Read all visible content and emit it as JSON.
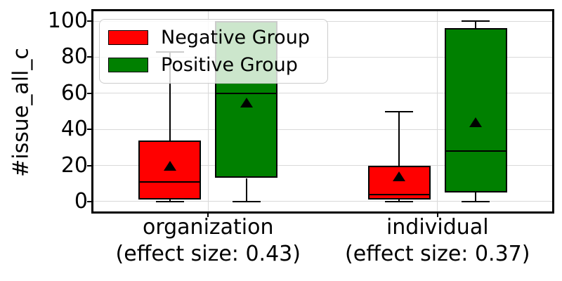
{
  "chart_data": {
    "type": "boxplot",
    "title": "",
    "ylabel": "#issue_all_c",
    "xlabel": "",
    "yticks": [
      0,
      20,
      40,
      60,
      80,
      100
    ],
    "ylim": [
      -5.5,
      105.5
    ],
    "grid": true,
    "legend_position": "upper left",
    "categories": [
      {
        "label": "organization",
        "sublabel": "(effect size: 0.43)"
      },
      {
        "label": "individual",
        "sublabel": "(effect size: 0.37)"
      }
    ],
    "series": [
      {
        "name": "Negative Group",
        "color": "#ff0000",
        "boxes": [
          {
            "category": "organization",
            "min": 0,
            "q1": 1,
            "median": 11,
            "q3": 34,
            "max": 83,
            "mean": 20
          },
          {
            "category": "individual",
            "min": 0,
            "q1": 1,
            "median": 4,
            "q3": 20,
            "max": 50,
            "mean": 14
          }
        ]
      },
      {
        "name": "Positive Group",
        "color": "#008000",
        "boxes": [
          {
            "category": "organization",
            "min": 0,
            "q1": 13,
            "median": 60,
            "q3": 100,
            "max": 100,
            "mean": 55
          },
          {
            "category": "individual",
            "min": 0,
            "q1": 5,
            "median": 28,
            "q3": 96,
            "max": 100,
            "mean": 44
          }
        ]
      }
    ],
    "style": {
      "box_edge_color": "#000000",
      "median_color": "#000000",
      "mean_marker": "black-triangle-up",
      "grid_color": "#d9d9d9"
    }
  }
}
